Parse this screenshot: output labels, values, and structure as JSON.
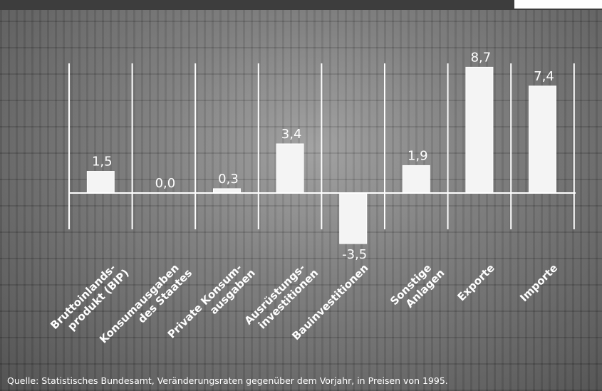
{
  "colors": {
    "bar_fill": "#f4f4f4",
    "axis_line": "#ffffff",
    "text": "#ffffff",
    "background": "#6e6e6e"
  },
  "source_note": "Quelle: Statistisches Bundesamt, Veränderungsraten gegenüber dem Vorjahr, in Preisen von 1995.",
  "chart_data": {
    "type": "bar",
    "categories": [
      [
        "Bruttoinlands-",
        "produkt (BIP)"
      ],
      [
        "Konsumausgaben",
        "des Staates"
      ],
      [
        "Private Konsum-",
        "ausgaben"
      ],
      [
        "Ausrüstungs-",
        "investitionen"
      ],
      [
        "Bauinvestitionen"
      ],
      [
        "Sonstige",
        "Anlagen"
      ],
      [
        "Exporte"
      ],
      [
        "Importe"
      ]
    ],
    "values": [
      1.5,
      0.0,
      0.3,
      3.4,
      -3.5,
      1.9,
      8.7,
      7.4
    ],
    "value_labels": [
      "1,5",
      "0,0",
      "0,3",
      "3,4",
      "-3,5",
      "1,9",
      "8,7",
      "7,4"
    ],
    "ylim": [
      -4.5,
      9.5
    ],
    "grid": false,
    "legend": "none"
  }
}
